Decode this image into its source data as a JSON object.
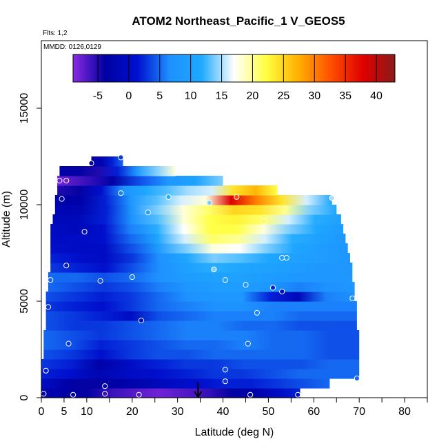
{
  "chart_data": {
    "type": "heatmap",
    "title": "ATOM2 Northeast_Pacific_1 V_GEOS5",
    "flights_note": "Flts: 1,2",
    "dates_note": "MMDD: 0126,0129",
    "xlabel": "Latitude (deg N)",
    "ylabel": "Altitude (m)",
    "xlim": [
      0,
      85
    ],
    "ylim": [
      0,
      18500
    ],
    "x_ticks": [
      0,
      5,
      10,
      20,
      30,
      40,
      50,
      60,
      70,
      80
    ],
    "y_ticks": [
      0,
      5000,
      10000,
      15000
    ],
    "colorbar": {
      "range": [
        -9,
        43
      ],
      "ticks": [
        -5,
        0,
        5,
        10,
        15,
        20,
        25,
        30,
        35,
        40
      ],
      "colors": [
        "#8a2be2",
        "#0000a0",
        "#0010d0",
        "#1e90ff",
        "#1eaaff",
        "#ffffff",
        "#ffff40",
        "#ffb000",
        "#ff5000",
        "#e00000",
        "#8b1a1a"
      ]
    },
    "band_height_m": 500,
    "bands": [
      {
        "alt": 0,
        "lat": [
          0,
          57
        ],
        "v": [
          -2,
          -3,
          -4,
          -6,
          -7,
          -8,
          -7,
          -6,
          -4,
          -3,
          0,
          2
        ]
      },
      {
        "alt": 500,
        "lat": [
          0,
          63.5
        ],
        "v": [
          0,
          -3,
          -4,
          -3,
          -2,
          0,
          1,
          2,
          2,
          3,
          4,
          5
        ]
      },
      {
        "alt": 1000,
        "lat": [
          0,
          70
        ],
        "v": [
          2,
          1,
          -2,
          0,
          1,
          2,
          3,
          3,
          4,
          5,
          5,
          5
        ]
      },
      {
        "alt": 1500,
        "lat": [
          0,
          70
        ],
        "v": [
          3,
          2,
          -3,
          0,
          2,
          3,
          3,
          4,
          4,
          4,
          5,
          5
        ]
      },
      {
        "alt": 2000,
        "lat": [
          0.5,
          70
        ],
        "v": [
          4,
          3,
          1,
          3,
          4,
          4,
          5,
          5,
          5,
          5,
          4,
          4
        ]
      },
      {
        "alt": 2500,
        "lat": [
          0.5,
          70
        ],
        "v": [
          5,
          4,
          2,
          3,
          4,
          5,
          5,
          6,
          5,
          5,
          4,
          4
        ]
      },
      {
        "alt": 3000,
        "lat": [
          0.5,
          70
        ],
        "v": [
          5,
          4,
          3,
          4,
          5,
          6,
          6,
          6,
          5,
          5,
          4,
          4
        ]
      },
      {
        "alt": 3500,
        "lat": [
          1,
          69.5
        ],
        "v": [
          4,
          3,
          3,
          4,
          5,
          6,
          6,
          5,
          5,
          4,
          4,
          4
        ]
      },
      {
        "alt": 4000,
        "lat": [
          1,
          69.5
        ],
        "v": [
          4,
          3,
          2,
          0,
          4,
          5,
          6,
          6,
          6,
          5,
          5,
          5
        ]
      },
      {
        "alt": 4500,
        "lat": [
          1,
          69.5
        ],
        "v": [
          3,
          2,
          1,
          3,
          5,
          6,
          7,
          7,
          6,
          6,
          6,
          6
        ]
      },
      {
        "alt": 5000,
        "lat": [
          1,
          69
        ],
        "v": [
          4,
          3,
          2,
          3,
          5,
          7,
          8,
          8,
          2,
          -1,
          6,
          7
        ]
      },
      {
        "alt": 5500,
        "lat": [
          1.5,
          69
        ],
        "v": [
          5,
          4,
          3,
          4,
          6,
          8,
          9,
          9,
          8,
          6,
          7,
          8
        ]
      },
      {
        "alt": 6000,
        "lat": [
          1.5,
          68.5
        ],
        "v": [
          5,
          5,
          4,
          5,
          7,
          9,
          10,
          10,
          9,
          8,
          8,
          8
        ]
      },
      {
        "alt": 6500,
        "lat": [
          2,
          68.5
        ],
        "v": [
          3,
          2,
          1,
          4,
          7,
          10,
          12,
          11,
          10,
          9,
          8,
          8
        ]
      },
      {
        "alt": 7000,
        "lat": [
          2,
          68
        ],
        "v": [
          2,
          1,
          0,
          3,
          7,
          11,
          14,
          13,
          11,
          10,
          9,
          8
        ]
      },
      {
        "alt": 7500,
        "lat": [
          2,
          67.5
        ],
        "v": [
          1,
          0,
          0,
          4,
          9,
          14,
          18,
          17,
          14,
          11,
          9,
          8
        ]
      },
      {
        "alt": 8000,
        "lat": [
          2,
          67
        ],
        "v": [
          0,
          0,
          1,
          5,
          11,
          16,
          21,
          20,
          16,
          12,
          10,
          8
        ]
      },
      {
        "alt": 8500,
        "lat": [
          2,
          66.5
        ],
        "v": [
          0,
          -1,
          1,
          6,
          12,
          17,
          22,
          22,
          18,
          14,
          11,
          9
        ]
      },
      {
        "alt": 9000,
        "lat": [
          2.5,
          66
        ],
        "v": [
          -1,
          -1,
          2,
          7,
          13,
          18,
          22,
          23,
          21,
          16,
          12,
          10
        ]
      },
      {
        "alt": 9500,
        "lat": [
          3,
          65
        ],
        "v": [
          -2,
          -2,
          2,
          8,
          14,
          18,
          21,
          25,
          24,
          20,
          14,
          11
        ]
      },
      {
        "alt": 10000,
        "lat": [
          3,
          64
        ],
        "v": [
          -3,
          -3,
          2,
          8,
          13,
          16,
          18,
          38,
          30,
          24,
          16,
          11
        ]
      },
      {
        "alt": 10500,
        "lat": [
          3.5,
          52
        ],
        "v": [
          -5,
          -4,
          1,
          7,
          11,
          13,
          15,
          16,
          24,
          27,
          22
        ]
      },
      {
        "alt": 11000,
        "lat": [
          3.5,
          40
        ],
        "v": [
          -8,
          -6,
          -3,
          4,
          8,
          10,
          14
        ]
      },
      {
        "alt": 11500,
        "lat": [
          4,
          29.5
        ],
        "v": [
          -3,
          -4,
          -5,
          2,
          8,
          14,
          18
        ]
      },
      {
        "alt": 12000,
        "lat": [
          11,
          18
        ],
        "v": [
          -4,
          -2,
          2,
          5
        ]
      }
    ],
    "annotations": [
      {
        "type": "arrow",
        "x": 34.5,
        "y_top": 800,
        "y_bottom": 0,
        "direction": "down"
      }
    ],
    "obs_points": [
      {
        "x": 0.5,
        "y": 200,
        "v": -2
      },
      {
        "x": 7,
        "y": 150,
        "v": -4
      },
      {
        "x": 14,
        "y": 200,
        "v": -6
      },
      {
        "x": 21.5,
        "y": 150,
        "v": -7
      },
      {
        "x": 46,
        "y": 150,
        "v": -3
      },
      {
        "x": 56.5,
        "y": 150,
        "v": 1
      },
      {
        "x": 14,
        "y": 600,
        "v": -2
      },
      {
        "x": 40.5,
        "y": 850,
        "v": 3
      },
      {
        "x": 69.5,
        "y": 1000,
        "v": 5
      },
      {
        "x": 1,
        "y": 1400,
        "v": 2
      },
      {
        "x": 40.5,
        "y": 1450,
        "v": 4
      },
      {
        "x": 6,
        "y": 2800,
        "v": 3
      },
      {
        "x": 45.5,
        "y": 2800,
        "v": 5
      },
      {
        "x": 22,
        "y": 4000,
        "v": 1
      },
      {
        "x": 47.5,
        "y": 4400,
        "v": 6
      },
      {
        "x": 1.5,
        "y": 4700,
        "v": 3
      },
      {
        "x": 53,
        "y": 5500,
        "v": 0
      },
      {
        "x": 68.5,
        "y": 5150,
        "v": 7
      },
      {
        "x": 51,
        "y": 5700,
        "v": 2
      },
      {
        "x": 45,
        "y": 5850,
        "v": 8
      },
      {
        "x": 13,
        "y": 6050,
        "v": 4
      },
      {
        "x": 2,
        "y": 6100,
        "v": 5
      },
      {
        "x": 20,
        "y": 6250,
        "v": 6
      },
      {
        "x": 40.5,
        "y": 6100,
        "v": 11
      },
      {
        "x": 38,
        "y": 6650,
        "v": 14
      },
      {
        "x": 5.5,
        "y": 6850,
        "v": 2
      },
      {
        "x": 53,
        "y": 7250,
        "v": 10
      },
      {
        "x": 54,
        "y": 7250,
        "v": 10
      },
      {
        "x": 9.5,
        "y": 8600,
        "v": 1
      },
      {
        "x": 49,
        "y": 9150,
        "v": 22
      },
      {
        "x": 23.5,
        "y": 9600,
        "v": 10
      },
      {
        "x": 37,
        "y": 10100,
        "v": 14
      },
      {
        "x": 64,
        "y": 10350,
        "v": 15
      },
      {
        "x": 4.5,
        "y": 10300,
        "v": -3
      },
      {
        "x": 28,
        "y": 10400,
        "v": 12
      },
      {
        "x": 43,
        "y": 10400,
        "v": 33
      },
      {
        "x": 17.5,
        "y": 10600,
        "v": 6
      },
      {
        "x": 4,
        "y": 11250,
        "v": -8
      },
      {
        "x": 5.5,
        "y": 11250,
        "v": -8
      },
      {
        "x": 11,
        "y": 12150,
        "v": -4
      },
      {
        "x": 17.5,
        "y": 12450,
        "v": 3
      }
    ]
  }
}
